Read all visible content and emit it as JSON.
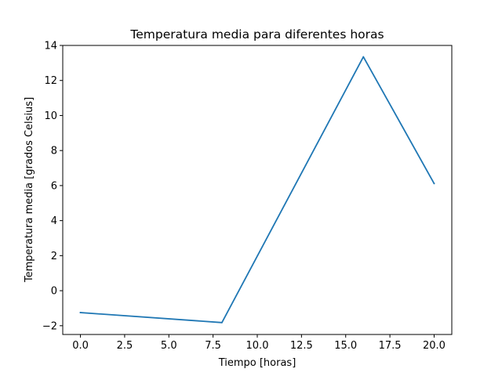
{
  "chart_data": {
    "type": "line",
    "title": "Temperatura media para diferentes horas",
    "xlabel": "Tiempo [horas]",
    "ylabel": "Temperatura media [grados Celsius]",
    "xlim": [
      -1.0,
      21.0
    ],
    "ylim": [
      -2.5,
      14.0
    ],
    "xticks": [
      0.0,
      2.5,
      5.0,
      7.5,
      10.0,
      12.5,
      15.0,
      17.5,
      20.0
    ],
    "xtick_labels": [
      "0.0",
      "2.5",
      "5.0",
      "7.5",
      "10.0",
      "12.5",
      "15.0",
      "17.5",
      "20.0"
    ],
    "yticks": [
      -2,
      0,
      2,
      4,
      6,
      8,
      10,
      12,
      14
    ],
    "ytick_labels": [
      "−2",
      "0",
      "2",
      "4",
      "6",
      "8",
      "10",
      "12",
      "14"
    ],
    "grid": false,
    "series": [
      {
        "color": "#1f77b4",
        "x": [
          0,
          8,
          16,
          20
        ],
        "y": [
          -1.25,
          -1.82,
          13.35,
          6.12
        ]
      }
    ]
  }
}
